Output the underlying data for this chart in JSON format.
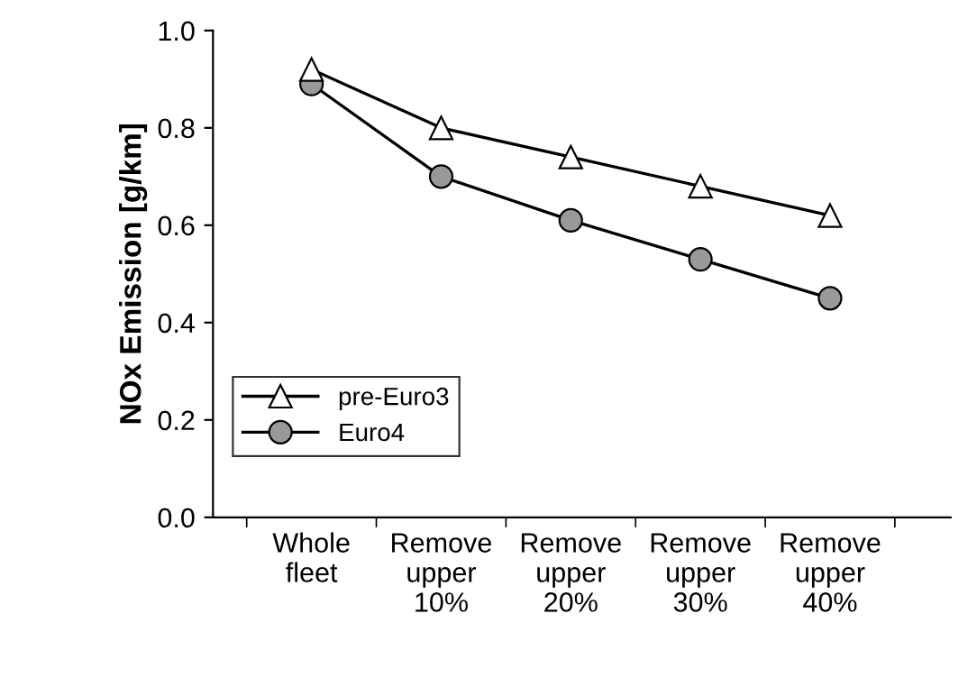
{
  "chart_data": {
    "type": "line",
    "ylabel": "NOx Emission [g/km]",
    "categories": [
      "Whole\nfleet",
      "Remove\nupper\n10%",
      "Remove\nupper\n20%",
      "Remove\nupper\n30%",
      "Remove\nupper\n40%"
    ],
    "series": [
      {
        "name": "pre-Euro3",
        "color": "#ffffff",
        "marker": "triangle",
        "values": [
          0.92,
          0.8,
          0.74,
          0.68,
          0.62
        ]
      },
      {
        "name": "Euro4",
        "color": "#999999",
        "marker": "circle",
        "values": [
          0.89,
          0.7,
          0.61,
          0.53,
          0.45
        ]
      }
    ],
    "ylim": [
      0,
      1
    ],
    "yticks": [
      {
        "value": 0,
        "label": "0.0"
      },
      {
        "value": 0.2,
        "label": "0.2"
      },
      {
        "value": 0.4,
        "label": "0.4"
      },
      {
        "value": 0.6,
        "label": "0.6"
      },
      {
        "value": 0.8,
        "label": "0.8"
      },
      {
        "value": 1,
        "label": "1.0"
      }
    ],
    "grid": false,
    "legend": "bottom left",
    "line_style": "solid"
  }
}
